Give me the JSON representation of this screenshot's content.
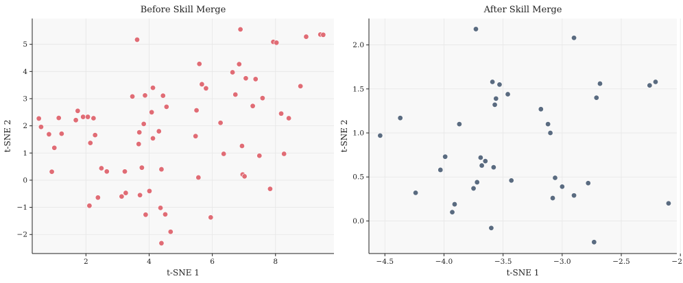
{
  "figure": {
    "background": "#ffffff",
    "panel_background": "#f8f8f8",
    "grid_color": "#e6e6e6"
  },
  "chart_data": [
    {
      "type": "scatter",
      "title": "Before Skill Merge",
      "xlabel": "t-SNE 1",
      "ylabel": "t-SNE 2",
      "xlim": [
        0.3,
        9.85
      ],
      "ylim": [
        -2.7,
        5.95
      ],
      "xticks": [
        2,
        4,
        6,
        8
      ],
      "xtick_labels": [
        "2",
        "4",
        "6",
        "8"
      ],
      "yticks": [
        -2,
        -1,
        0,
        1,
        2,
        3,
        4,
        5
      ],
      "ytick_labels": [
        "−2",
        "−1",
        "0",
        "1",
        "2",
        "3",
        "4",
        "5"
      ],
      "grid": true,
      "marker_color": "#e06c75",
      "x": [
        0.51,
        0.58,
        0.83,
        0.92,
        1.0,
        1.14,
        1.23,
        1.68,
        1.74,
        1.91,
        2.06,
        2.11,
        2.14,
        2.24,
        2.29,
        2.38,
        2.49,
        2.66,
        3.13,
        3.23,
        3.26,
        3.47,
        3.62,
        3.67,
        3.69,
        3.71,
        3.77,
        3.83,
        3.87,
        3.89,
        4.01,
        4.08,
        4.12,
        4.12,
        4.31,
        4.36,
        4.39,
        4.39,
        4.44,
        4.51,
        4.55,
        4.68,
        5.47,
        5.5,
        5.56,
        5.59,
        5.67,
        5.8,
        5.95,
        6.26,
        6.36,
        6.64,
        6.73,
        6.85,
        6.89,
        6.94,
        6.96,
        7.02,
        7.06,
        7.28,
        7.37,
        7.49,
        7.59,
        7.83,
        7.93,
        8.03,
        8.18,
        8.27,
        8.42,
        8.79,
        8.97,
        9.42,
        9.51
      ],
      "y": [
        2.27,
        1.96,
        1.69,
        0.31,
        1.19,
        2.29,
        1.71,
        2.21,
        2.55,
        2.33,
        2.33,
        -0.94,
        1.37,
        2.28,
        1.66,
        -0.64,
        0.44,
        0.32,
        -0.6,
        0.32,
        -0.47,
        3.08,
        5.17,
        1.33,
        1.76,
        -0.55,
        0.46,
        2.07,
        3.12,
        -1.27,
        -0.4,
        2.5,
        3.4,
        1.54,
        1.8,
        -1.02,
        0.4,
        -2.32,
        3.11,
        -1.26,
        2.7,
        -1.9,
        1.62,
        2.57,
        0.1,
        4.28,
        3.53,
        3.38,
        -1.37,
        2.11,
        0.97,
        3.97,
        3.15,
        4.27,
        5.55,
        1.26,
        0.21,
        0.14,
        3.75,
        2.73,
        3.72,
        0.9,
        3.02,
        -0.32,
        5.09,
        5.06,
        2.45,
        0.97,
        2.28,
        3.46,
        5.28,
        5.36,
        5.35
      ]
    },
    {
      "type": "scatter",
      "title": "After Skill Merge",
      "xlabel": "t-SNE 1",
      "ylabel": "t-SNE 2",
      "xlim": [
        -4.635,
        -2.03
      ],
      "ylim": [
        -0.37,
        2.3
      ],
      "xticks": [
        -4.5,
        -4.0,
        -3.5,
        -3.0,
        -2.5,
        -2.0
      ],
      "xtick_labels": [
        "−4.5",
        "−4.0",
        "−3.5",
        "−3.0",
        "−2.5",
        "−2.0"
      ],
      "yticks": [
        0.0,
        0.5,
        1.0,
        1.5,
        2.0
      ],
      "ytick_labels": [
        "0.0",
        "0.5",
        "1.0",
        "1.5",
        "2.0"
      ],
      "grid": true,
      "marker_color": "#5a6b80",
      "x": [
        -4.54,
        -4.37,
        -4.24,
        -4.03,
        -3.99,
        -3.93,
        -3.91,
        -3.87,
        -3.73,
        -3.75,
        -3.72,
        -3.69,
        -3.68,
        -3.65,
        -3.6,
        -3.59,
        -3.58,
        -3.57,
        -3.56,
        -3.53,
        -3.46,
        -3.43,
        -3.18,
        -3.12,
        -3.1,
        -3.08,
        -3.06,
        -3.0,
        -2.9,
        -2.9,
        -2.78,
        -2.73,
        -2.71,
        -2.68,
        -2.26,
        -2.21,
        -2.1
      ],
      "y": [
        0.97,
        1.17,
        0.32,
        0.58,
        0.73,
        0.1,
        0.19,
        1.1,
        2.18,
        0.37,
        0.44,
        0.72,
        0.63,
        0.68,
        -0.08,
        1.58,
        0.61,
        1.32,
        1.39,
        1.55,
        1.44,
        0.46,
        1.27,
        1.1,
        1.0,
        0.26,
        0.49,
        0.39,
        2.08,
        0.29,
        0.43,
        -0.24,
        1.4,
        1.56,
        1.54,
        1.58,
        0.2
      ]
    }
  ]
}
